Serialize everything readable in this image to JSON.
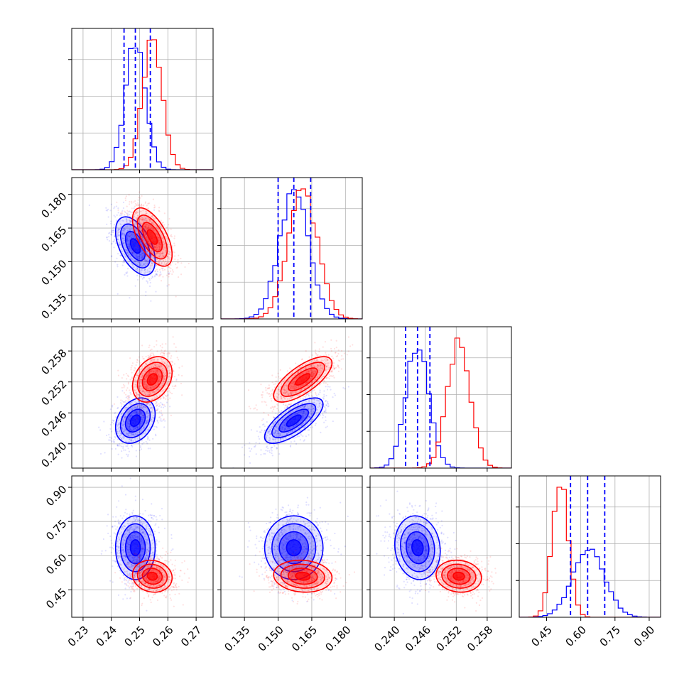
{
  "chart_data": {
    "type": "corner",
    "description_free": true,
    "params": [
      {
        "ticks": [
          0.23,
          0.24,
          0.25,
          0.26,
          0.27
        ],
        "tick_labels": [
          "0.23",
          "0.24",
          "0.25",
          "0.26",
          "0.27"
        ],
        "range": [
          0.226,
          0.276
        ],
        "means": [
          0.2485,
          0.2545
        ],
        "sds": [
          0.0035,
          0.0035
        ],
        "quantiles": [
          0.2445,
          0.2485,
          0.2538
        ]
      },
      {
        "ticks": [
          0.135,
          0.15,
          0.165,
          0.18
        ],
        "tick_labels": [
          "0.135",
          "0.150",
          "0.165",
          "0.180"
        ],
        "range": [
          0.1245,
          0.1875
        ],
        "means": [
          0.157,
          0.161
        ],
        "sds": [
          0.0065,
          0.0065
        ],
        "quantiles": [
          0.15,
          0.157,
          0.1645
        ]
      },
      {
        "ticks": [
          0.24,
          0.246,
          0.252,
          0.258
        ],
        "tick_labels": [
          "0.240",
          "0.246",
          "0.252",
          "0.258"
        ],
        "range": [
          0.2353,
          0.2627
        ],
        "means": [
          0.2445,
          0.2525
        ],
        "sds": [
          0.0022,
          0.0022
        ],
        "quantiles": [
          0.2422,
          0.2445,
          0.2469
        ]
      },
      {
        "ticks": [
          0.45,
          0.6,
          0.75,
          0.9
        ],
        "tick_labels": [
          "0.45",
          "0.60",
          "0.75",
          "0.90"
        ],
        "range": [
          0.33,
          0.95
        ],
        "means": [
          0.635,
          0.51
        ],
        "sds": [
          0.07,
          0.035
        ],
        "quantiles": [
          0.555,
          0.63,
          0.705
        ]
      }
    ],
    "series": [
      {
        "color": "#0000ff",
        "param_means": [
          0.2485,
          0.157,
          0.2445,
          0.635
        ]
      },
      {
        "color": "#ff0000",
        "param_means": [
          0.2545,
          0.161,
          0.2525,
          0.51
        ]
      }
    ],
    "correlations": [
      {
        "i": 1,
        "j": 0,
        "blue": -0.5,
        "red": -0.6
      },
      {
        "i": 2,
        "j": 0,
        "blue": 0.3,
        "red": 0.3
      },
      {
        "i": 2,
        "j": 1,
        "blue": 0.72,
        "red": 0.72
      },
      {
        "i": 3,
        "j": 0,
        "blue": 0.0,
        "red": -0.1
      },
      {
        "i": 3,
        "j": 1,
        "blue": 0.0,
        "red": -0.1
      },
      {
        "i": 3,
        "j": 2,
        "blue": -0.1,
        "red": -0.1
      }
    ],
    "grid": true,
    "quantile_line_color": "#0000ff"
  }
}
